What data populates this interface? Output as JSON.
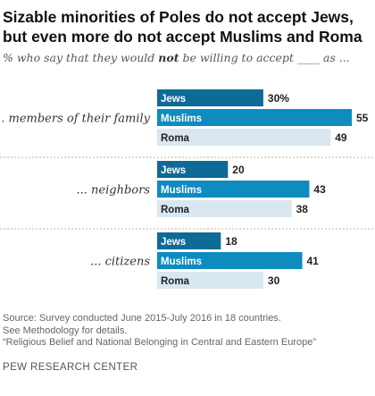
{
  "title_line1": "Sizable minorities of Poles do not accept Jews,",
  "title_line2": "but even more do not accept Muslims and Roma",
  "subtitle_pre": "% who say that they would ",
  "subtitle_bold": "not",
  "subtitle_post": " be willing to accept ____ as ...",
  "footer": {
    "source": "Source: Survey conducted June 2015-July 2016 in 18 countries.",
    "method": "See Methodology for details.",
    "report": "“Religious Belief and National Belonging in Central and Eastern Europe”",
    "brand": "PEW RESEARCH CENTER"
  },
  "colors": {
    "jews": "#0d6b96",
    "muslims": "#0e8bbf",
    "roma": "#d9e7f1",
    "label_dark": "#ffffff",
    "label_light": "#222222"
  },
  "chart_data": {
    "type": "bar",
    "orientation": "horizontal",
    "xlim": [
      0,
      55
    ],
    "groups": [
      {
        "label": "... members of their family",
        "bars": [
          {
            "name": "Jews",
            "value": 30,
            "value_label": "30%"
          },
          {
            "name": "Muslims",
            "value": 55,
            "value_label": "55"
          },
          {
            "name": "Roma",
            "value": 49,
            "value_label": "49"
          }
        ]
      },
      {
        "label": "... neighbors",
        "bars": [
          {
            "name": "Jews",
            "value": 20,
            "value_label": "20"
          },
          {
            "name": "Muslims",
            "value": 43,
            "value_label": "43"
          },
          {
            "name": "Roma",
            "value": 38,
            "value_label": "38"
          }
        ]
      },
      {
        "label": "... citizens",
        "bars": [
          {
            "name": "Jews",
            "value": 18,
            "value_label": "18"
          },
          {
            "name": "Muslims",
            "value": 41,
            "value_label": "41"
          },
          {
            "name": "Roma",
            "value": 30,
            "value_label": "30"
          }
        ]
      }
    ]
  }
}
